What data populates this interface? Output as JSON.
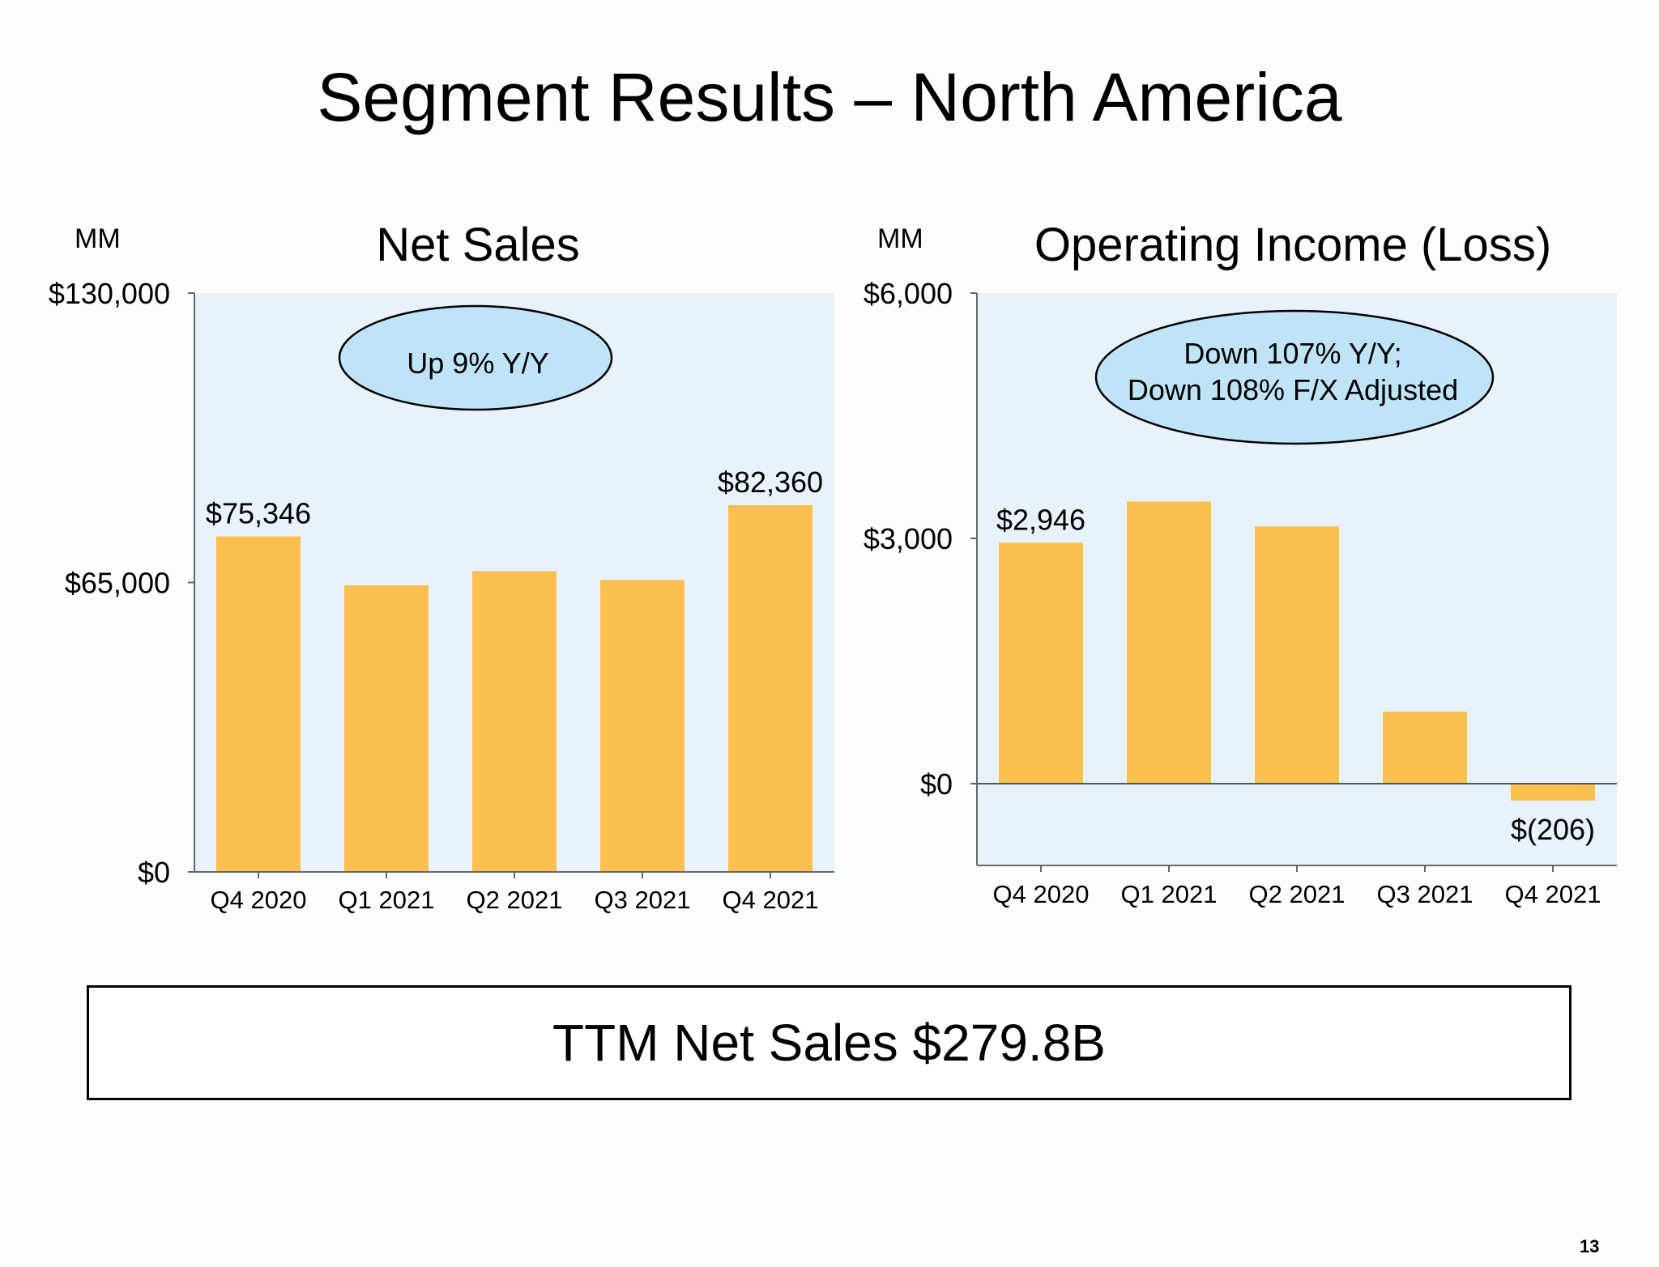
{
  "slide_title": "Segment Results – North America",
  "colors": {
    "bar": "#fbbf4f",
    "plot_bg": "#e8f2fc",
    "callout_fill": "#bfe4f8"
  },
  "chart_data": [
    {
      "type": "bar",
      "title": "Net Sales",
      "unit": "MM",
      "categories": [
        "Q4 2020",
        "Q1 2021",
        "Q2 2021",
        "Q3 2021",
        "Q4 2021"
      ],
      "values": [
        75346,
        64366,
        67550,
        65557,
        82360
      ],
      "data_labels": [
        "$75,346",
        "",
        "",
        "",
        "$82,360"
      ],
      "ylim": [
        0,
        130000
      ],
      "yticks": [
        0,
        65000,
        130000
      ],
      "ytick_labels": [
        "$0",
        "$65,000",
        "$130,000"
      ],
      "callout": [
        "Up 9% Y/Y"
      ],
      "grid": false
    },
    {
      "type": "bar",
      "title": "Operating Income (Loss)",
      "unit": "MM",
      "categories": [
        "Q4 2020",
        "Q1 2021",
        "Q2 2021",
        "Q3 2021",
        "Q4 2021"
      ],
      "values": [
        2946,
        3450,
        3146,
        880,
        -206
      ],
      "data_labels": [
        "$2,946",
        "",
        "",
        "",
        "$(206)"
      ],
      "ylim": [
        -1000,
        6000
      ],
      "yticks": [
        0,
        3000,
        6000
      ],
      "ytick_labels": [
        "$0",
        "$3,000",
        "$6,000"
      ],
      "callout": [
        "Down 107% Y/Y;",
        "Down 108% F/X Adjusted"
      ],
      "grid": false
    }
  ],
  "ttm_text": "TTM Net Sales $279.8B",
  "page_number": "13"
}
